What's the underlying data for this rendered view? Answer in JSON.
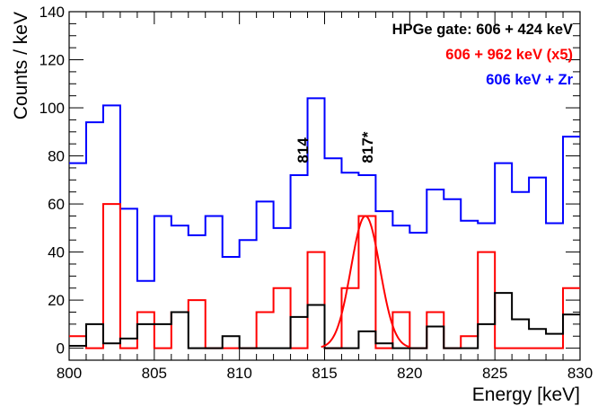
{
  "chart_data": {
    "type": "line",
    "xlabel": "Energy [keV]",
    "ylabel": "Counts / keV",
    "xlim": [
      800,
      830
    ],
    "ylim": [
      -5,
      140
    ],
    "x_ticks": [
      800,
      805,
      810,
      815,
      820,
      825,
      830
    ],
    "y_ticks": [
      0,
      20,
      40,
      60,
      80,
      100,
      120,
      140
    ],
    "bin_edges": [
      800,
      801,
      802,
      803,
      804,
      805,
      806,
      807,
      808,
      809,
      810,
      811,
      812,
      813,
      814,
      815,
      816,
      817,
      818,
      819,
      820,
      821,
      822,
      823,
      824,
      825,
      826,
      827,
      828,
      829,
      830
    ],
    "series": [
      {
        "name": "606 keV + Zr",
        "color": "#0000ff",
        "values": [
          77,
          94,
          101,
          58,
          28,
          55,
          51,
          47,
          55,
          38,
          45,
          61,
          50,
          72,
          104,
          79,
          73,
          72,
          57,
          51,
          48,
          66,
          62,
          53,
          52,
          77,
          65,
          71,
          52,
          88
        ]
      },
      {
        "name": "606 + 962 keV (x5)",
        "color": "#ff0000",
        "values": [
          5,
          0,
          60,
          0,
          15,
          0,
          15,
          20,
          0,
          0,
          0,
          15,
          25,
          0,
          40,
          0,
          25,
          55,
          0,
          15,
          0,
          15,
          0,
          5,
          40,
          0,
          0,
          0,
          0,
          25
        ]
      },
      {
        "name": "HPGe gate: 606 + 424 keV",
        "color": "#000000",
        "values": [
          1,
          10,
          2,
          4,
          10,
          10,
          15,
          0,
          0,
          5,
          0,
          0,
          0,
          13,
          18,
          0,
          0,
          7,
          2,
          0,
          0,
          9,
          0,
          0,
          10,
          23,
          12,
          8,
          6,
          14
        ]
      }
    ],
    "fit_curve": {
      "color": "#ff0000",
      "mean": 817.4,
      "sigma": 0.85,
      "amplitude": 55,
      "baseline": 0,
      "x_range": [
        814.8,
        820.0
      ]
    },
    "annotations": [
      {
        "text": "814",
        "x": 813.7,
        "y": 77
      },
      {
        "text": "817*",
        "x": 817.5,
        "y": 77
      }
    ]
  }
}
